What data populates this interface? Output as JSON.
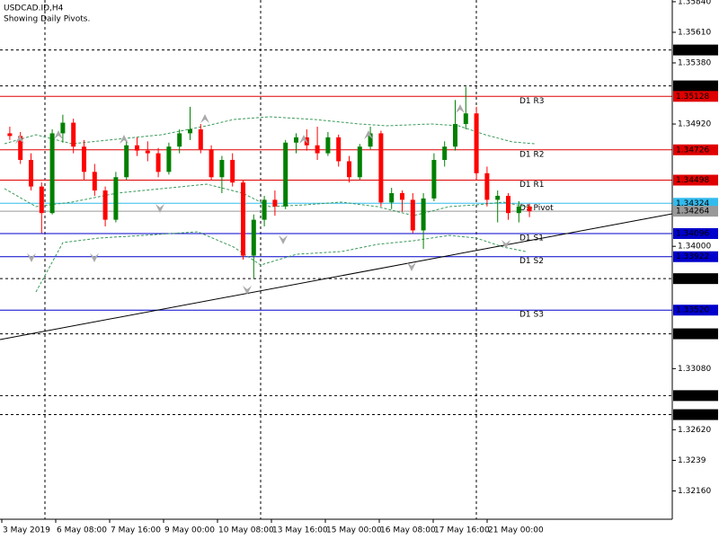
{
  "chart_data": {
    "type": "candlestick",
    "title": "USDCAD.ID,H4",
    "subtitle": "Showing Daily Pivots.",
    "bull_color": "#008000",
    "bear_color": "#ff0000",
    "open": [
      1.3485,
      1.3483,
      1.3465,
      1.3445,
      1.3425,
      1.3485,
      1.3493,
      1.3475,
      1.3456,
      1.3442,
      1.342,
      1.3452,
      1.3476,
      1.3472,
      1.347,
      1.3456,
      1.3475,
      1.3485,
      1.3488,
      1.3473,
      1.3452,
      1.3465,
      1.3448,
      1.3393,
      1.342,
      1.3435,
      1.343,
      1.3478,
      1.3482,
      1.3476,
      1.347,
      1.3482,
      1.3464,
      1.3452,
      1.3475,
      1.3485,
      1.3433,
      1.344,
      1.3435,
      1.3412,
      1.3436,
      1.3465,
      1.3475,
      1.3492,
      1.35,
      1.3455,
      1.3435,
      1.3438,
      1.3425,
      1.343
    ],
    "high": [
      1.349,
      1.3486,
      1.347,
      1.3448,
      1.3488,
      1.3499,
      1.3496,
      1.348,
      1.3462,
      1.3445,
      1.3456,
      1.348,
      1.3482,
      1.3479,
      1.3474,
      1.3478,
      1.3488,
      1.3505,
      1.3492,
      1.3476,
      1.3468,
      1.347,
      1.345,
      1.3424,
      1.3438,
      1.3442,
      1.348,
      1.3485,
      1.3488,
      1.349,
      1.3486,
      1.3484,
      1.3468,
      1.3477,
      1.349,
      1.3487,
      1.3444,
      1.3442,
      1.344,
      1.344,
      1.347,
      1.3479,
      1.351,
      1.352,
      1.3505,
      1.346,
      1.3442,
      1.344,
      1.3434,
      1.3432
    ],
    "low": [
      1.348,
      1.3462,
      1.3442,
      1.341,
      1.3424,
      1.3478,
      1.347,
      1.345,
      1.3438,
      1.3415,
      1.3418,
      1.345,
      1.3468,
      1.3464,
      1.3452,
      1.3454,
      1.347,
      1.348,
      1.347,
      1.345,
      1.344,
      1.3445,
      1.339,
      1.3376,
      1.3415,
      1.3423,
      1.3428,
      1.347,
      1.3472,
      1.3465,
      1.3468,
      1.346,
      1.3448,
      1.345,
      1.3473,
      1.343,
      1.3428,
      1.3426,
      1.341,
      1.3398,
      1.3434,
      1.346,
      1.3472,
      1.3488,
      1.345,
      1.343,
      1.3418,
      1.342,
      1.3418,
      1.3422
    ],
    "close": [
      1.3483,
      1.3465,
      1.3445,
      1.3425,
      1.3485,
      1.3493,
      1.3475,
      1.3456,
      1.3442,
      1.342,
      1.3452,
      1.3476,
      1.3472,
      1.347,
      1.3456,
      1.3475,
      1.3485,
      1.3488,
      1.3473,
      1.3452,
      1.3465,
      1.3448,
      1.3393,
      1.342,
      1.3435,
      1.343,
      1.3478,
      1.3482,
      1.3476,
      1.347,
      1.3482,
      1.3464,
      1.3452,
      1.3475,
      1.3485,
      1.3433,
      1.344,
      1.3435,
      1.3412,
      1.3436,
      1.3465,
      1.3475,
      1.3492,
      1.35,
      1.3455,
      1.3435,
      1.3438,
      1.3425,
      1.343,
      1.34264
    ],
    "x_labels": [
      "3 May 2019",
      "6 May 08:00",
      "7 May 16:00",
      "9 May 00:00",
      "10 May 08:00",
      "13 May 16:00",
      "15 May 00:00",
      "16 May 08:00",
      "17 May 16:00",
      "21 May 00:00"
    ],
    "ylim": [
      1.31947,
      1.35853
    ],
    "yticks": [
      {
        "value": 1.3584,
        "label": "1.35840"
      },
      {
        "value": 1.3561,
        "label": "1.35610"
      },
      {
        "value": 1.3538,
        "label": "1.35380"
      },
      {
        "value": 1.3492,
        "label": "1.34920"
      },
      {
        "value": 1.34,
        "label": "1.34000"
      },
      {
        "value": 1.3308,
        "label": "1.33080"
      },
      {
        "value": 1.3262,
        "label": "1.32620"
      },
      1.3239,
      {
        "value": 1.3216,
        "label": "1.32160"
      }
    ],
    "levels": [
      {
        "value": 1.35477,
        "color": "#000000",
        "style": "dashed"
      },
      {
        "value": 1.35207,
        "color": "#000000",
        "style": "dashed"
      },
      {
        "name": "D1 R3",
        "value": 1.35128,
        "color": "#e00000",
        "style": "solid"
      },
      {
        "name": "D1 R2",
        "value": 1.34726,
        "color": "#e00000",
        "style": "solid"
      },
      {
        "name": "D1 R1",
        "value": 1.34498,
        "color": "#e00000",
        "style": "solid"
      },
      {
        "name": "D1 Pivot",
        "value": 1.34324,
        "color": "#33bbee",
        "style": "solid"
      },
      {
        "value": 1.34264,
        "color": "#999999",
        "style": "solid"
      },
      {
        "name": "D1 S1",
        "value": 1.34096,
        "color": "#0000cc",
        "style": "solid"
      },
      {
        "name": "D1 S2",
        "value": 1.33922,
        "color": "#0000cc",
        "style": "solid"
      },
      {
        "value": 1.33757,
        "color": "#000000",
        "style": "dashed"
      },
      {
        "name": "D1 S3",
        "value": 1.3352,
        "label": "1.33520",
        "color": "#0000cc",
        "style": "solid"
      },
      {
        "value": 1.33342,
        "color": "#000000",
        "style": "dashed"
      },
      {
        "value": 1.32877,
        "color": "#000000",
        "style": "dashed"
      },
      {
        "value": 1.32734,
        "color": "#000000",
        "style": "dashed"
      }
    ]
  }
}
